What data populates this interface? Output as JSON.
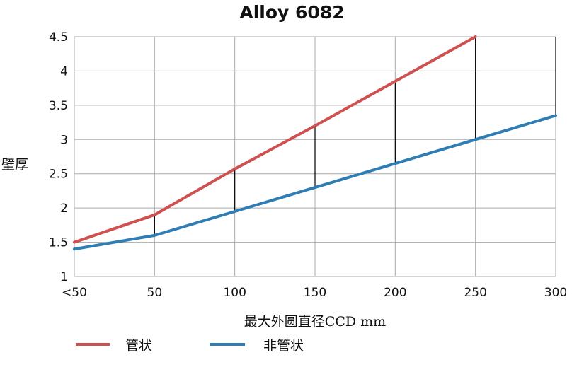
{
  "chart_data": {
    "type": "line",
    "title": "Alloy 6082",
    "xlabel": "最大外圆直径CCD mm",
    "ylabel": "壁厚",
    "categories": [
      "<50",
      "50",
      "100",
      "150",
      "200",
      "250",
      "300"
    ],
    "ylim": [
      1,
      4.5
    ],
    "yticks": [
      "1",
      "1.5",
      "2",
      "2.5",
      "3",
      "3.5",
      "4",
      "4.5"
    ],
    "grid": true,
    "legend_position": "bottom-left",
    "series": [
      {
        "name": "管状",
        "color": "#d0504f",
        "values": [
          1.5,
          1.9,
          2.57,
          3.2,
          3.85,
          4.5,
          null
        ]
      },
      {
        "name": "非管状",
        "color": "#2e7db5",
        "values": [
          1.4,
          1.6,
          1.95,
          2.3,
          2.65,
          3.0,
          3.35
        ]
      }
    ],
    "drop_line_color": "#000000"
  }
}
